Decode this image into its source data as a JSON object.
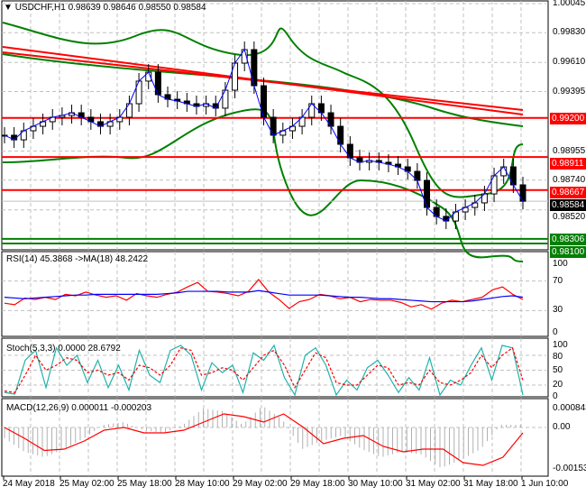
{
  "header": {
    "symbol_label": "USDCHF,H1",
    "ohlc": "0.98639 0.98646 0.98550 0.98584"
  },
  "price_axis": [
    "1.00045",
    "0.99830",
    "0.99610",
    "0.99395",
    "0.98955",
    "0.98740",
    "0.98520"
  ],
  "levels": [
    {
      "price": 0.992,
      "label": "0.99200",
      "color": "#ff0000"
    },
    {
      "price": 0.98911,
      "label": "0.98911",
      "color": "#ff0000"
    },
    {
      "price": 0.98667,
      "label": "0.98667",
      "color": "#ff0000"
    },
    {
      "price": 0.98306,
      "label": "0.98306",
      "color": "#008000"
    },
    {
      "price": 0.981,
      "label": "0.98100",
      "color": "#008000"
    }
  ],
  "current_price": {
    "price": 0.98584,
    "label": "0.98584"
  },
  "chart_data": {
    "type": "candlestick",
    "symbol": "USDCHF",
    "timeframe": "H1",
    "closes": [
      0.99072,
      0.99038,
      0.99105,
      0.99138,
      0.99172,
      0.99205,
      0.99218,
      0.99238,
      0.99205,
      0.99172,
      0.99138,
      0.99172,
      0.99205,
      0.99305,
      0.99472,
      0.99538,
      0.99372,
      0.99338,
      0.99325,
      0.99305,
      0.99285,
      0.99305,
      0.99272,
      0.99405,
      0.99605,
      0.99705,
      0.99438,
      0.99205,
      0.99072,
      0.99105,
      0.99138,
      0.99205,
      0.99305,
      0.99238,
      0.99138,
      0.99005,
      0.98905,
      0.98872,
      0.98885,
      0.98872,
      0.98858,
      0.98838,
      0.98805,
      0.98738,
      0.98538,
      0.98472,
      0.98438,
      0.98505,
      0.98538,
      0.98572,
      0.98638,
      0.98772,
      0.98838,
      0.98705,
      0.98584
    ],
    "price_range": [
      0.981,
      1.00045
    ],
    "x_labels": [
      "24 May 2018",
      "25 May 02:00",
      "25 May 18:00",
      "28 May 10:00",
      "29 May 02:00",
      "29 May 18:00",
      "30 May 10:00",
      "31 May 02:00",
      "31 May 18:00",
      "1 Jun 10:00"
    ]
  },
  "rsi": {
    "title": "RSI(14) 45.3868  ->MA(18) 48.2422",
    "axis": [
      "100",
      "70",
      "30",
      "0"
    ],
    "rsi": [
      40,
      38,
      47,
      45,
      48,
      45,
      52,
      50,
      55,
      51,
      48,
      50,
      44,
      53,
      50,
      48,
      52,
      55,
      62,
      68,
      56,
      55,
      53,
      50,
      56,
      72,
      55,
      45,
      33,
      42,
      45,
      52,
      50,
      46,
      48,
      42,
      45,
      44,
      44,
      41,
      35,
      38,
      32,
      40,
      44,
      42,
      45,
      48,
      58,
      62,
      52,
      45
    ],
    "ma": [
      48,
      47,
      46,
      47,
      48,
      49,
      50,
      51,
      51,
      52,
      52,
      52,
      52,
      52,
      52,
      52,
      53,
      54,
      56,
      56,
      56,
      56,
      55,
      55,
      55,
      57,
      55,
      53,
      51,
      51,
      51,
      51,
      50,
      49,
      48,
      48,
      47,
      46,
      46,
      45,
      44,
      43,
      42,
      42,
      42,
      42,
      43,
      45,
      47,
      49,
      50,
      48
    ]
  },
  "stoch": {
    "title": "Stoch(5,3,3) 0.0000 28.6792",
    "axis": [
      "100",
      "80",
      "50",
      "20",
      "0"
    ],
    "main": [
      5,
      2,
      70,
      90,
      15,
      95,
      60,
      80,
      25,
      70,
      15,
      60,
      10,
      90,
      40,
      25,
      90,
      100,
      80,
      10,
      65,
      45,
      60,
      5,
      85,
      70,
      100,
      35,
      0,
      80,
      95,
      60,
      0,
      30,
      10,
      55,
      70,
      40,
      5,
      35,
      10,
      75,
      0,
      30,
      20,
      60,
      95,
      30,
      100,
      95,
      0
    ],
    "signal": [
      8,
      5,
      40,
      80,
      50,
      60,
      75,
      70,
      45,
      50,
      40,
      45,
      30,
      60,
      55,
      40,
      60,
      95,
      90,
      40,
      45,
      55,
      50,
      30,
      55,
      80,
      90,
      60,
      15,
      50,
      85,
      75,
      25,
      20,
      20,
      40,
      60,
      55,
      20,
      25,
      20,
      50,
      25,
      20,
      30,
      45,
      80,
      55,
      80,
      95,
      30
    ]
  },
  "macd": {
    "title": "MACD(12,26,9) 0.000011 -0.000203",
    "axis": [
      "0.000843",
      "0.00",
      "-0.001533"
    ],
    "signal": [
      0,
      -0.0004,
      -0.00085,
      -0.0008,
      -0.0005,
      -0.0001,
      0,
      -0.0002,
      -0.0002,
      -0.0001,
      0.0002,
      0.0005,
      0.0004,
      0.0002,
      0.0005,
      0,
      -0.0006,
      -0.0004,
      -0.0003,
      -0.0007,
      -0.0009,
      -0.0008,
      -0.0008,
      -0.0013,
      -0.0014,
      -0.0011,
      -0.0002
    ],
    "hist": [
      -0.0004,
      -0.0009,
      -0.0011,
      -0.0008,
      -0.0004,
      0.0001,
      0.0002,
      -0.0001,
      -0.0002,
      0.0001,
      0.0007,
      0.0006,
      0.0001,
      0.0008,
      0.0003,
      -0.0008,
      -0.0005,
      -0.0003,
      -0.0008,
      -0.0011,
      -0.0009,
      -0.001,
      -0.0015,
      -0.0012,
      -0.0008,
      0.0001,
      0.0001
    ]
  }
}
